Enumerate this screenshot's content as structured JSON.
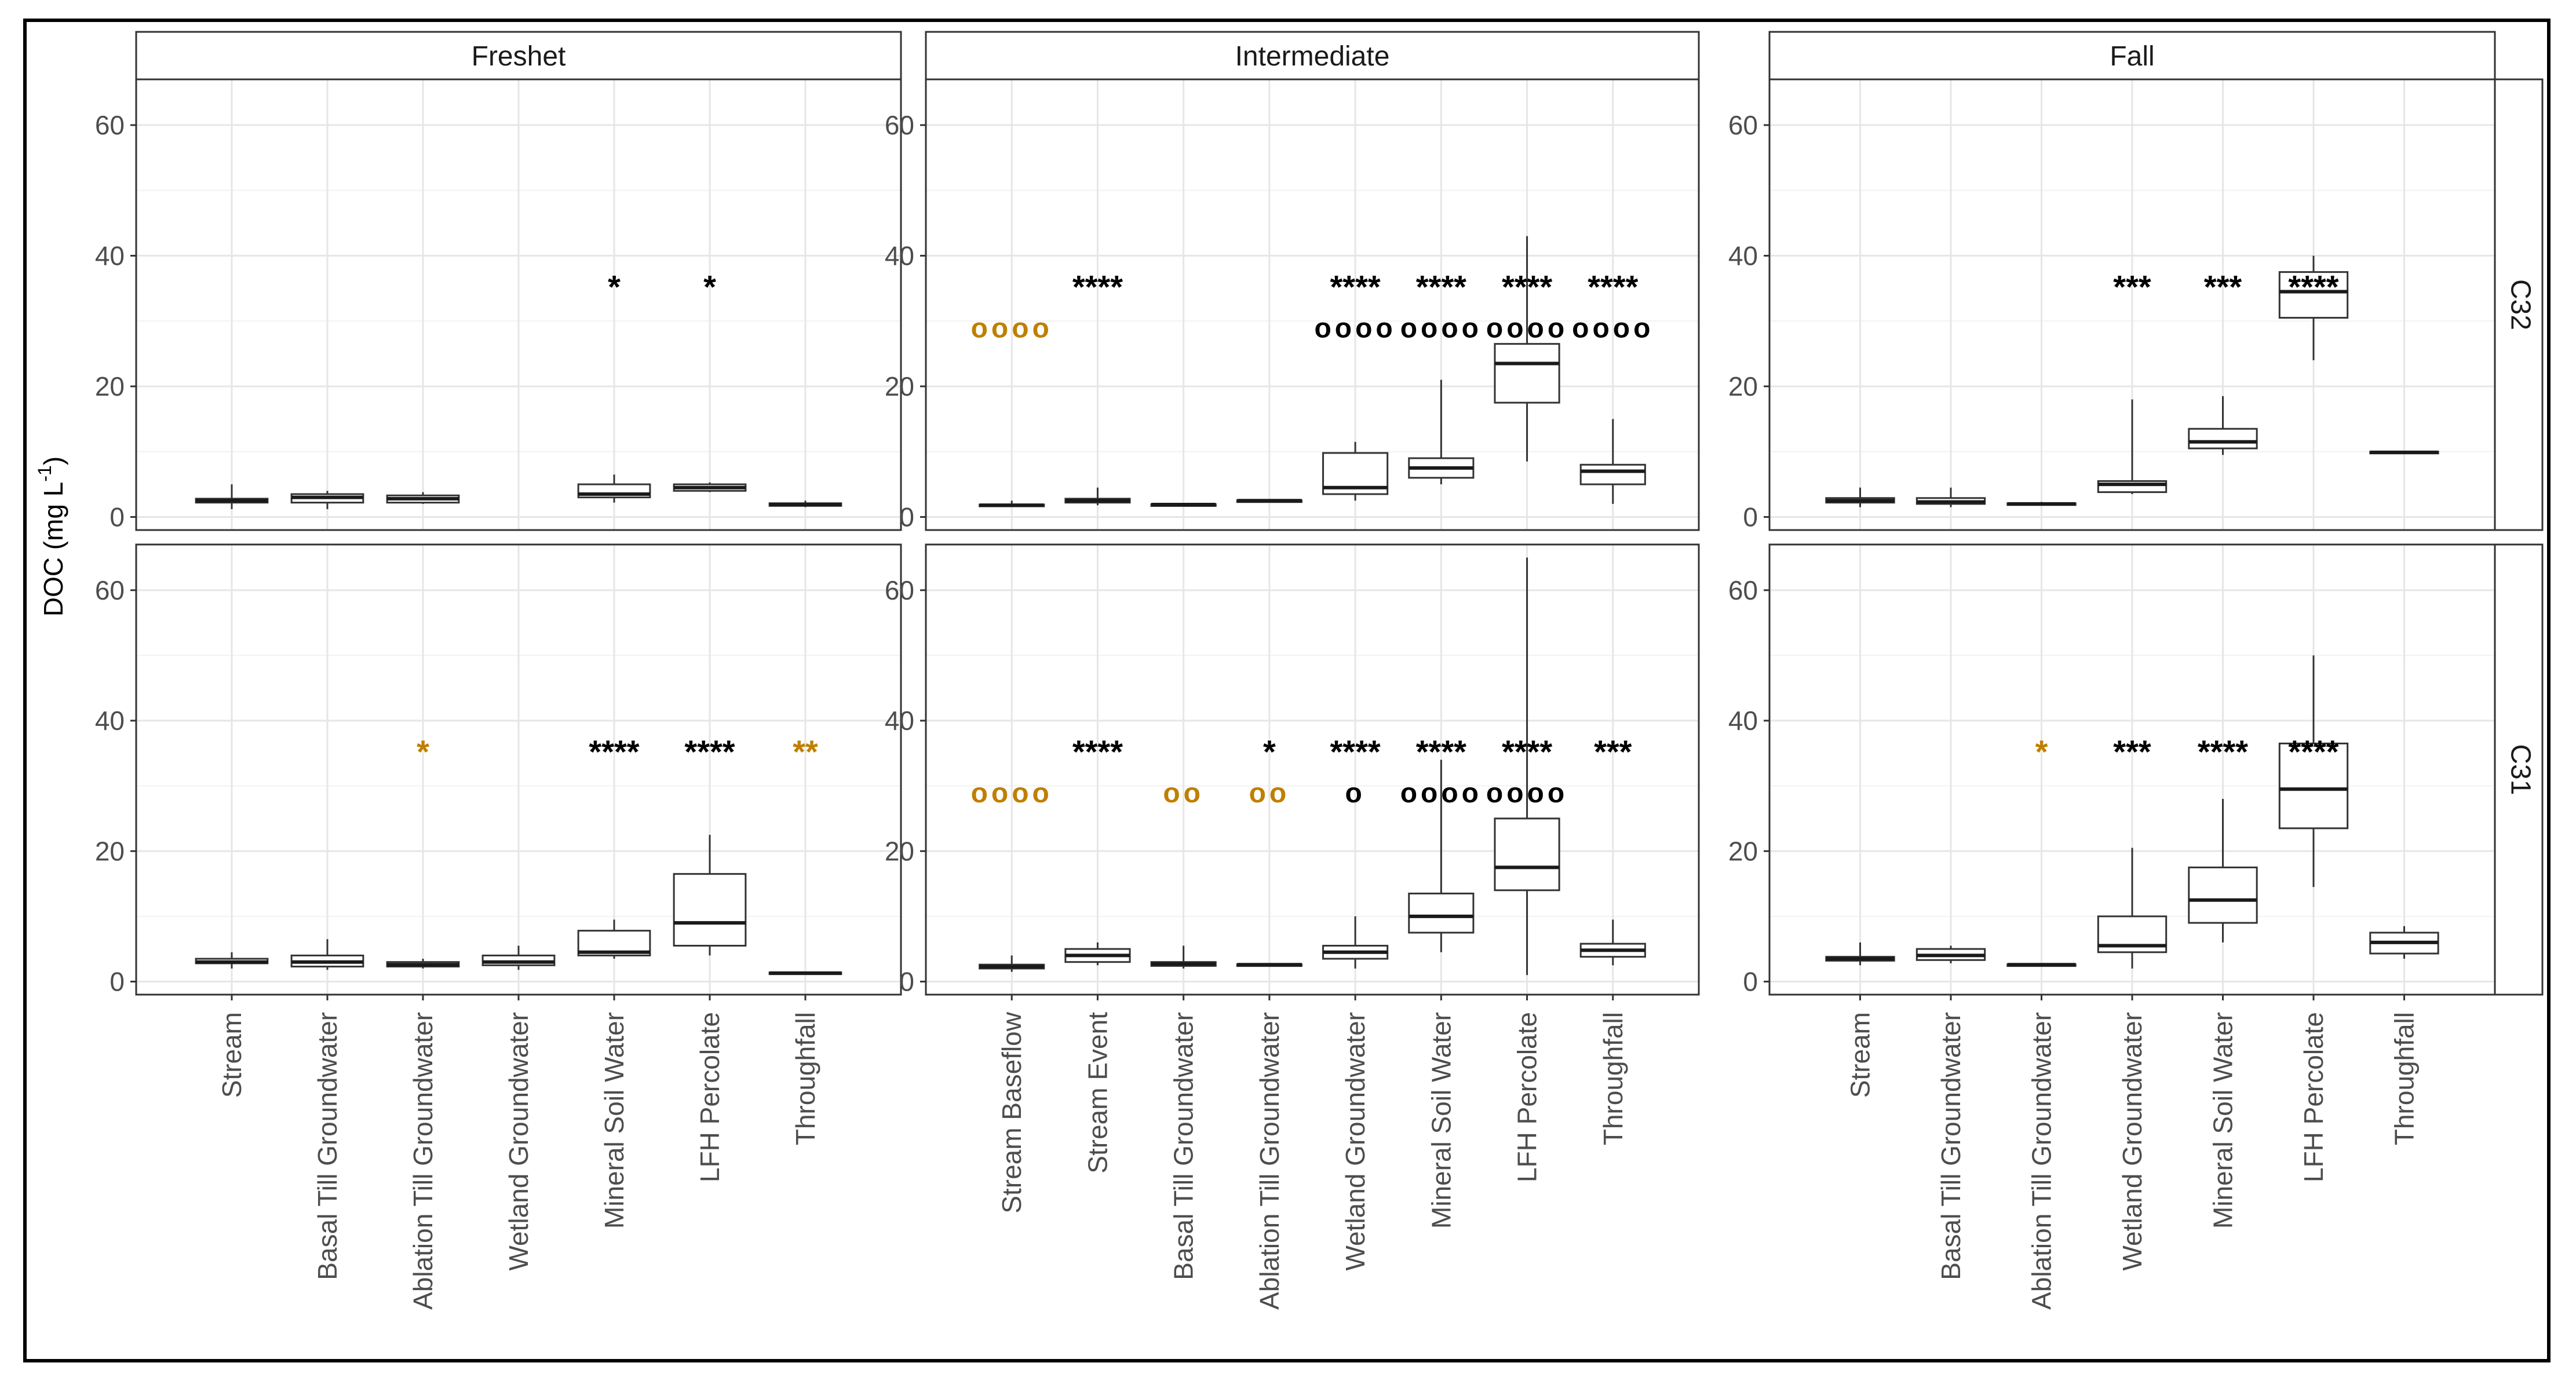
{
  "chart_data": {
    "type": "boxplot",
    "ylabel": "DOC (mg L",
    "ylabel_superscript": "-1",
    "ylabel_close": ")",
    "ylim": [
      0,
      65
    ],
    "yticks": [
      0,
      20,
      40,
      60
    ],
    "colors": {
      "black": "#000000",
      "orange": "#c07f00"
    },
    "columns": [
      {
        "name": "Freshet",
        "categories": [
          "Stream",
          "Basal Till Groundwater",
          "Ablation Till Groundwater",
          "Wetland Groundwater",
          "Mineral Soil Water",
          "LFH Percolate",
          "Throughfall"
        ]
      },
      {
        "name": "Intermediate",
        "categories": [
          "Stream Baseflow",
          "Stream Event",
          "Basal Till Groundwater",
          "Ablation Till Groundwater",
          "Wetland Groundwater",
          "Mineral Soil Water",
          "LFH Percolate",
          "Throughfall"
        ]
      },
      {
        "name": "Fall",
        "categories": [
          "Stream",
          "Basal Till Groundwater",
          "Ablation Till Groundwater",
          "Wetland Groundwater",
          "Mineral Soil Water",
          "LFH Percolate",
          "Throughfall"
        ]
      }
    ],
    "rows": [
      "C32",
      "C31"
    ],
    "panels": [
      {
        "row": "C32",
        "col": "Freshet",
        "boxes": [
          {
            "i": 0,
            "min": 1.2,
            "q1": 2.2,
            "med": 2.5,
            "q3": 2.8,
            "max": 5.0
          },
          {
            "i": 1,
            "min": 1.2,
            "q1": 2.2,
            "med": 3.0,
            "q3": 3.5,
            "max": 4.0
          },
          {
            "i": 2,
            "min": 2.0,
            "q1": 2.2,
            "med": 2.8,
            "q3": 3.3,
            "max": 3.8
          },
          {
            "i": 4,
            "min": 2.2,
            "q1": 3.0,
            "med": 3.5,
            "q3": 5.0,
            "max": 6.5
          },
          {
            "i": 5,
            "min": 3.8,
            "q1": 4.0,
            "med": 4.5,
            "q3": 5.0,
            "max": 5.3
          },
          {
            "i": 6,
            "min": 1.5,
            "q1": 1.7,
            "med": 1.9,
            "q3": 2.1,
            "max": 2.5
          }
        ],
        "annotations": [
          {
            "i": 4,
            "kind": "star",
            "text": "*",
            "color": "black"
          },
          {
            "i": 5,
            "kind": "star",
            "text": "*",
            "color": "black"
          }
        ]
      },
      {
        "row": "C32",
        "col": "Intermediate",
        "boxes": [
          {
            "i": 0,
            "min": 1.5,
            "q1": 1.7,
            "med": 1.8,
            "q3": 1.9,
            "max": 2.5
          },
          {
            "i": 1,
            "min": 1.8,
            "q1": 2.2,
            "med": 2.5,
            "q3": 2.8,
            "max": 4.5
          },
          {
            "i": 2,
            "min": 1.8,
            "q1": 1.85,
            "med": 1.9,
            "q3": 1.95,
            "max": 2.0
          },
          {
            "i": 3,
            "min": 2.4,
            "q1": 2.45,
            "med": 2.5,
            "q3": 2.55,
            "max": 2.6
          },
          {
            "i": 4,
            "min": 2.5,
            "q1": 3.5,
            "med": 4.5,
            "q3": 9.8,
            "max": 11.5
          },
          {
            "i": 5,
            "min": 5.0,
            "q1": 6.0,
            "med": 7.5,
            "q3": 9.0,
            "max": 21.0
          },
          {
            "i": 6,
            "min": 8.5,
            "q1": 17.5,
            "med": 23.5,
            "q3": 26.5,
            "max": 43.0
          },
          {
            "i": 7,
            "min": 2.0,
            "q1": 5.0,
            "med": 7.0,
            "q3": 8.0,
            "max": 15.0
          }
        ],
        "annotations": [
          {
            "i": 0,
            "kind": "circle",
            "text": "oooo",
            "color": "orange"
          },
          {
            "i": 1,
            "kind": "star",
            "text": "****",
            "color": "black"
          },
          {
            "i": 4,
            "kind": "star",
            "text": "****",
            "color": "black"
          },
          {
            "i": 4,
            "kind": "circle",
            "text": "oooo",
            "color": "black"
          },
          {
            "i": 5,
            "kind": "star",
            "text": "****",
            "color": "black"
          },
          {
            "i": 5,
            "kind": "circle",
            "text": "oooo",
            "color": "black"
          },
          {
            "i": 6,
            "kind": "star",
            "text": "****",
            "color": "black"
          },
          {
            "i": 6,
            "kind": "circle",
            "text": "oooo",
            "color": "black"
          },
          {
            "i": 7,
            "kind": "star",
            "text": "****",
            "color": "black"
          },
          {
            "i": 7,
            "kind": "circle",
            "text": "oooo",
            "color": "black"
          }
        ]
      },
      {
        "row": "C32",
        "col": "Fall",
        "boxes": [
          {
            "i": 0,
            "min": 1.5,
            "q1": 2.2,
            "med": 2.5,
            "q3": 2.9,
            "max": 4.5
          },
          {
            "i": 1,
            "min": 1.5,
            "q1": 2.0,
            "med": 2.3,
            "q3": 2.9,
            "max": 4.5
          },
          {
            "i": 2,
            "min": 1.8,
            "q1": 1.9,
            "med": 2.0,
            "q3": 2.1,
            "max": 2.3
          },
          {
            "i": 3,
            "min": 3.5,
            "q1": 3.8,
            "med": 5.0,
            "q3": 5.5,
            "max": 18.0
          },
          {
            "i": 4,
            "min": 9.5,
            "q1": 10.5,
            "med": 11.5,
            "q3": 13.5,
            "max": 18.5
          },
          {
            "i": 5,
            "min": 24.0,
            "q1": 30.5,
            "med": 34.5,
            "q3": 37.5,
            "max": 40.0
          },
          {
            "i": 6,
            "min": 9.7,
            "q1": 9.8,
            "med": 9.9,
            "q3": 10.0,
            "max": 10.1
          }
        ],
        "annotations": [
          {
            "i": 3,
            "kind": "star",
            "text": "***",
            "color": "black"
          },
          {
            "i": 4,
            "kind": "star",
            "text": "***",
            "color": "black"
          },
          {
            "i": 5,
            "kind": "star",
            "text": "****",
            "color": "black"
          }
        ]
      },
      {
        "row": "C31",
        "col": "Freshet",
        "boxes": [
          {
            "i": 0,
            "min": 2.0,
            "q1": 2.8,
            "med": 3.0,
            "q3": 3.5,
            "max": 4.5
          },
          {
            "i": 1,
            "min": 1.8,
            "q1": 2.3,
            "med": 3.0,
            "q3": 4.0,
            "max": 6.5
          },
          {
            "i": 2,
            "min": 2.0,
            "q1": 2.3,
            "med": 2.6,
            "q3": 3.0,
            "max": 3.5
          },
          {
            "i": 3,
            "min": 1.8,
            "q1": 2.5,
            "med": 3.0,
            "q3": 4.0,
            "max": 5.5
          },
          {
            "i": 4,
            "min": 3.5,
            "q1": 4.0,
            "med": 4.5,
            "q3": 7.8,
            "max": 9.5
          },
          {
            "i": 5,
            "min": 4.0,
            "q1": 5.5,
            "med": 9.0,
            "q3": 16.5,
            "max": 22.5
          },
          {
            "i": 6,
            "min": 1.1,
            "q1": 1.2,
            "med": 1.3,
            "q3": 1.4,
            "max": 1.5
          }
        ],
        "annotations": [
          {
            "i": 2,
            "kind": "star",
            "text": "*",
            "color": "orange"
          },
          {
            "i": 4,
            "kind": "star",
            "text": "****",
            "color": "black"
          },
          {
            "i": 5,
            "kind": "star",
            "text": "****",
            "color": "black"
          },
          {
            "i": 6,
            "kind": "star",
            "text": "**",
            "color": "orange"
          }
        ]
      },
      {
        "row": "C31",
        "col": "Intermediate",
        "boxes": [
          {
            "i": 0,
            "min": 1.5,
            "q1": 2.0,
            "med": 2.3,
            "q3": 2.6,
            "max": 4.0
          },
          {
            "i": 1,
            "min": 2.5,
            "q1": 3.0,
            "med": 4.0,
            "q3": 5.0,
            "max": 6.0
          },
          {
            "i": 2,
            "min": 2.0,
            "q1": 2.4,
            "med": 2.7,
            "q3": 3.0,
            "max": 5.5
          },
          {
            "i": 3,
            "min": 2.5,
            "q1": 2.55,
            "med": 2.6,
            "q3": 2.65,
            "max": 2.8
          },
          {
            "i": 4,
            "min": 2.0,
            "q1": 3.5,
            "med": 4.5,
            "q3": 5.5,
            "max": 10.0
          },
          {
            "i": 5,
            "min": 4.5,
            "q1": 7.5,
            "med": 10.0,
            "q3": 13.5,
            "max": 34.0
          },
          {
            "i": 6,
            "min": 1.0,
            "q1": 14.0,
            "med": 17.5,
            "q3": 25.0,
            "max": 65.0
          },
          {
            "i": 7,
            "min": 2.5,
            "q1": 3.8,
            "med": 4.8,
            "q3": 5.8,
            "max": 9.5
          }
        ],
        "annotations": [
          {
            "i": 0,
            "kind": "circle",
            "text": "oooo",
            "color": "orange"
          },
          {
            "i": 1,
            "kind": "star",
            "text": "****",
            "color": "black"
          },
          {
            "i": 2,
            "kind": "circle",
            "text": "oo",
            "color": "orange"
          },
          {
            "i": 3,
            "kind": "star",
            "text": "*",
            "color": "black"
          },
          {
            "i": 3,
            "kind": "circle",
            "text": "oo",
            "color": "orange"
          },
          {
            "i": 4,
            "kind": "star",
            "text": "****",
            "color": "black"
          },
          {
            "i": 4,
            "kind": "circle",
            "text": "o",
            "color": "black"
          },
          {
            "i": 5,
            "kind": "star",
            "text": "****",
            "color": "black"
          },
          {
            "i": 5,
            "kind": "circle",
            "text": "oooo",
            "color": "black"
          },
          {
            "i": 6,
            "kind": "star",
            "text": "****",
            "color": "black"
          },
          {
            "i": 6,
            "kind": "circle",
            "text": "oooo",
            "color": "black"
          },
          {
            "i": 7,
            "kind": "star",
            "text": "***",
            "color": "black"
          }
        ]
      },
      {
        "row": "C31",
        "col": "Fall",
        "boxes": [
          {
            "i": 0,
            "min": 2.5,
            "q1": 3.2,
            "med": 3.5,
            "q3": 3.8,
            "max": 6.0
          },
          {
            "i": 1,
            "min": 2.8,
            "q1": 3.3,
            "med": 4.0,
            "q3": 5.0,
            "max": 5.5
          },
          {
            "i": 2,
            "min": 2.5,
            "q1": 2.55,
            "med": 2.6,
            "q3": 2.65,
            "max": 2.8
          },
          {
            "i": 3,
            "min": 2.0,
            "q1": 4.5,
            "med": 5.5,
            "q3": 10.0,
            "max": 20.5
          },
          {
            "i": 4,
            "min": 6.0,
            "q1": 9.0,
            "med": 12.5,
            "q3": 17.5,
            "max": 28.0
          },
          {
            "i": 5,
            "min": 14.5,
            "q1": 23.5,
            "med": 29.5,
            "q3": 36.5,
            "max": 50.0
          },
          {
            "i": 6,
            "min": 3.5,
            "q1": 4.3,
            "med": 6.0,
            "q3": 7.5,
            "max": 8.5
          }
        ],
        "annotations": [
          {
            "i": 2,
            "kind": "star",
            "text": "*",
            "color": "orange"
          },
          {
            "i": 3,
            "kind": "star",
            "text": "***",
            "color": "black"
          },
          {
            "i": 4,
            "kind": "star",
            "text": "****",
            "color": "black"
          },
          {
            "i": 5,
            "kind": "star",
            "text": "****",
            "color": "black"
          }
        ]
      }
    ]
  }
}
